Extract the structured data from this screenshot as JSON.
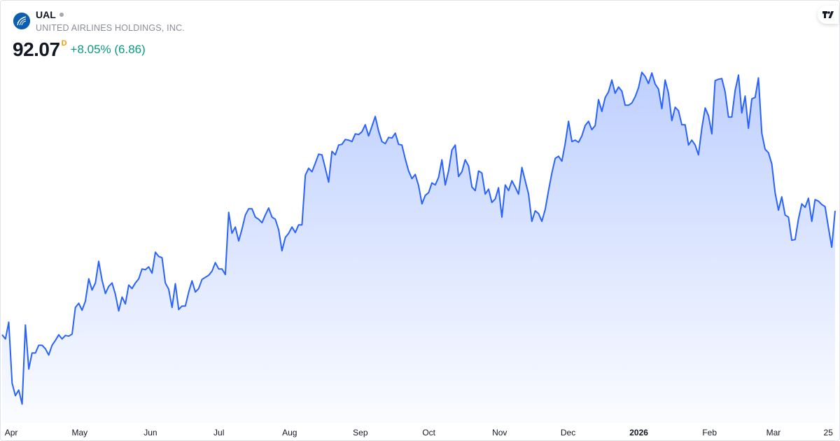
{
  "header": {
    "symbol": "UAL",
    "status_dot_color": "#a3a6af",
    "company": "UNITED AIRLINES HOLDINGS, INC.",
    "price": "92.07",
    "price_type": "D",
    "change": "+8.05% (6.86)",
    "logo_icon": "united-airlines-globe-icon",
    "brand_logo": "tradingview-logo"
  },
  "colors": {
    "line": "#2962ff",
    "change_positive": "#089981",
    "price_type": "#ff9800"
  },
  "chart_data": {
    "type": "area",
    "title": "",
    "xlabel": "",
    "ylabel": "",
    "grid": false,
    "legend": "none",
    "y_axis_visible": false,
    "xlim": [
      "2025-03-28",
      "2026-03-28"
    ],
    "ylim": [
      52.0,
      131.8
    ],
    "x_ticks": [
      {
        "label": "Apr",
        "date": "2025-04-01",
        "bold": false
      },
      {
        "label": "May",
        "date": "2025-05-01",
        "bold": false
      },
      {
        "label": "Jun",
        "date": "2025-06-01",
        "bold": false
      },
      {
        "label": "Jul",
        "date": "2025-07-01",
        "bold": false
      },
      {
        "label": "Aug",
        "date": "2025-08-01",
        "bold": false
      },
      {
        "label": "Sep",
        "date": "2025-09-01",
        "bold": false
      },
      {
        "label": "Oct",
        "date": "2025-10-01",
        "bold": false
      },
      {
        "label": "Nov",
        "date": "2025-11-01",
        "bold": false
      },
      {
        "label": "Dec",
        "date": "2025-12-01",
        "bold": false
      },
      {
        "label": "2026",
        "date": "2026-01-01",
        "bold": true
      },
      {
        "label": "Feb",
        "date": "2026-02-01",
        "bold": false
      },
      {
        "label": "Mar",
        "date": "2026-03-01",
        "bold": false
      },
      {
        "label": "25",
        "date": "2026-03-25",
        "bold": false
      }
    ],
    "series": [
      {
        "values": [
          68.72,
          67.93,
          71.1,
          59.62,
          57.25,
          58.3,
          55.66,
          70.57,
          62.26,
          65.29,
          65.29,
          66.74,
          66.74,
          66.08,
          64.9,
          66.74,
          67.67,
          68.72,
          67.93,
          68.59,
          68.46,
          68.85,
          73.87,
          74.66,
          73.34,
          75.05,
          79.27,
          77.16,
          78.48,
          82.57,
          79.01,
          76.5,
          77.82,
          78.48,
          76.37,
          73.21,
          75.84,
          74.53,
          78.09,
          77.43,
          78.48,
          79.27,
          81.12,
          80.99,
          81.52,
          80.33,
          84.29,
          83.49,
          83.23,
          78.48,
          77.3,
          73.87,
          78.35,
          73.47,
          74.13,
          74.13,
          76.77,
          78.88,
          76.77,
          77.43,
          79.14,
          79.54,
          79.93,
          80.72,
          82.31,
          81.12,
          81.12,
          80.07,
          91.8,
          87.85,
          89.03,
          86.4,
          88.64,
          91.28,
          92.46,
          92.46,
          90.88,
          90.49,
          89.83,
          91.28,
          92.6,
          90.88,
          90.49,
          88.51,
          84.55,
          87.06,
          87.85,
          89.03,
          87.98,
          89.43,
          89.43,
          98.79,
          100.11,
          99.45,
          101.04,
          102.75,
          102.62,
          100.11,
          97.48,
          103.28,
          102.62,
          104.47,
          104.6,
          105.52,
          105.39,
          105.13,
          106.58,
          106.45,
          106.97,
          108.29,
          106.18,
          108.03,
          109.87,
          107.1,
          105.13,
          104.73,
          105.92,
          105.79,
          106.71,
          104.6,
          104.47,
          101.83,
          99.59,
          98.14,
          98.93,
          96.82,
          93.39,
          94.97,
          95.5,
          97.34,
          96.95,
          98.4,
          101.7,
          96.95,
          99.59,
          103.54,
          104.47,
          98.53,
          99.45,
          101.7,
          100.51,
          96.55,
          95.89,
          99.59,
          99.19,
          95.23,
          96.16,
          93.65,
          94.31,
          96.42,
          90.88,
          96.95,
          95.89,
          97.74,
          96.55,
          95.23,
          100.25,
          97.74,
          95.23,
          90.09,
          92.07,
          91.54,
          90.09,
          92.33,
          95.89,
          99.19,
          101.96,
          102.36,
          101.43,
          104.73,
          108.95,
          105.13,
          105.39,
          104.99,
          106.18,
          108.16,
          108.95,
          107.37,
          108.16,
          113.04,
          110.8,
          113.44,
          114.49,
          116.73,
          114.23,
          115.41,
          114.62,
          111.98,
          111.98,
          112.38,
          113.57,
          115.28,
          118.18,
          117.39,
          116.07,
          118.05,
          115.94,
          115.02,
          111.33,
          116.73,
          114.23,
          109.08,
          111.59,
          110.93,
          108.29,
          108.29,
          104.47,
          105.39,
          104.47,
          102.62,
          107.63,
          111.46,
          110.01,
          106.58,
          116.6,
          116.87,
          117.0,
          114.49,
          109.74,
          109.74,
          114.75,
          117.66,
          110.53,
          113.7,
          107.63,
          113.17,
          113.44,
          117.13,
          106.71,
          103.68,
          103.02,
          100.91,
          95.5,
          92.2,
          94.71,
          91.28,
          90.88,
          86.53,
          86.66,
          90.49,
          93.39,
          92.73,
          94.44,
          90.09,
          94.18,
          93.91,
          93.26,
          92.86,
          88.9,
          85.21,
          92.07
        ]
      }
    ]
  }
}
